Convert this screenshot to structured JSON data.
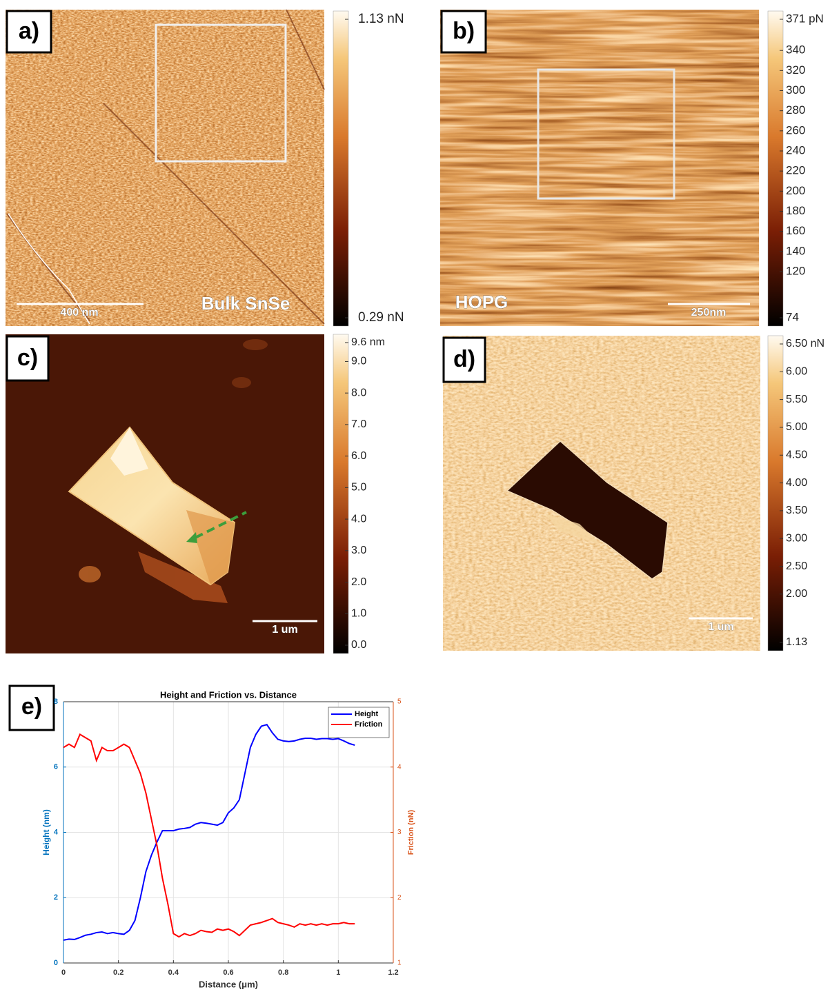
{
  "panels": [
    {
      "label": "a)",
      "sample": "Bulk SnSe",
      "scale_bar": "400 nm",
      "colorbar": {
        "lim": [
          0.29,
          1.13
        ],
        "ticks": [
          {
            "value": 1.13,
            "label": "1.13 nN"
          },
          {
            "value": 0.29,
            "label": "0.29 nN"
          }
        ]
      }
    },
    {
      "label": "b)",
      "sample": "HOPG",
      "scale_bar": "250nm",
      "colorbar": {
        "lim": [
          74,
          371
        ],
        "ticks": [
          {
            "value": 371,
            "label": "371 pN"
          },
          340,
          320,
          300,
          280,
          260,
          240,
          220,
          200,
          180,
          160,
          140,
          120,
          74
        ]
      }
    },
    {
      "label": "c)",
      "scale_bar": "1 um",
      "colorbar": {
        "lim": [
          0,
          9.6
        ],
        "ticks": [
          {
            "value": 9.6,
            "label": "9.6 nm"
          },
          {
            "value": 9,
            "label": "9.0"
          },
          {
            "value": 8,
            "label": "8.0"
          },
          {
            "value": 7,
            "label": "7.0"
          },
          {
            "value": 6,
            "label": "6.0"
          },
          {
            "value": 5,
            "label": "5.0"
          },
          {
            "value": 4,
            "label": "4.0"
          },
          {
            "value": 3,
            "label": "3.0"
          },
          {
            "value": 2,
            "label": "2.0"
          },
          {
            "value": 1,
            "label": "1.0"
          },
          {
            "value": 0,
            "label": "0.0"
          }
        ]
      }
    },
    {
      "label": "d)",
      "scale_bar": "1 um",
      "colorbar": {
        "lim": [
          1.13,
          6.5
        ],
        "ticks": [
          {
            "value": 6.5,
            "label": "6.50 nN"
          },
          {
            "value": 6,
            "label": "6.00"
          },
          {
            "value": 5.5,
            "label": "5.50"
          },
          {
            "value": 5,
            "label": "5.00"
          },
          {
            "value": 4.5,
            "label": "4.50"
          },
          {
            "value": 4,
            "label": "4.00"
          },
          {
            "value": 3.5,
            "label": "3.50"
          },
          {
            "value": 3,
            "label": "3.00"
          },
          {
            "value": 2.5,
            "label": "2.50"
          },
          {
            "value": 2,
            "label": "2.00"
          },
          {
            "value": 1.13,
            "label": "1.13"
          }
        ]
      }
    }
  ],
  "chart_data": {
    "type": "line",
    "panel_label": "e)",
    "title": "Height and Friction vs. Distance",
    "x_label": "Distance (μm)",
    "y_label": "Height (nm)",
    "y2_label": "Friction (nN)",
    "y_color": "#0072bd",
    "y2_color": "#d95319",
    "grid": true,
    "legend": "upper right",
    "xlim": [
      0,
      1.2
    ],
    "xticks": [
      0,
      0.2,
      0.4,
      0.6,
      0.8,
      1,
      1.2
    ],
    "ylim": [
      0,
      8
    ],
    "yticks": [
      0,
      2,
      4,
      6,
      8
    ],
    "y2lim": [
      1,
      5
    ],
    "y2ticks": [
      1,
      2,
      3,
      4,
      5
    ],
    "x": [
      0,
      0.02,
      0.04,
      0.06,
      0.08,
      0.1,
      0.12,
      0.14,
      0.16,
      0.18,
      0.2,
      0.22,
      0.24,
      0.26,
      0.28,
      0.3,
      0.32,
      0.34,
      0.36,
      0.38,
      0.4,
      0.42,
      0.44,
      0.46,
      0.48,
      0.5,
      0.52,
      0.54,
      0.56,
      0.58,
      0.6,
      0.62,
      0.64,
      0.66,
      0.68,
      0.7,
      0.72,
      0.74,
      0.76,
      0.78,
      0.8,
      0.82,
      0.84,
      0.86,
      0.88,
      0.9,
      0.92,
      0.94,
      0.96,
      0.98,
      1,
      1.02,
      1.04,
      1.06
    ],
    "series": [
      {
        "name": "Height",
        "color": "#0000ff",
        "values": [
          0.7,
          0.73,
          0.72,
          0.78,
          0.85,
          0.88,
          0.93,
          0.95,
          0.9,
          0.93,
          0.9,
          0.88,
          1.0,
          1.3,
          2.0,
          2.8,
          3.3,
          3.7,
          4.05,
          4.05,
          4.05,
          4.1,
          4.12,
          4.15,
          4.25,
          4.3,
          4.28,
          4.25,
          4.22,
          4.3,
          4.6,
          4.75,
          5.0,
          5.8,
          6.6,
          7.0,
          7.25,
          7.3,
          7.05,
          6.85,
          6.8,
          6.78,
          6.8,
          6.85,
          6.88,
          6.88,
          6.85,
          6.87,
          6.87,
          6.85,
          6.87,
          6.8,
          6.72,
          6.67
        ]
      },
      {
        "name": "Friction",
        "color": "#ff0000",
        "axis": "y2",
        "values": [
          4.3,
          4.35,
          4.3,
          4.5,
          4.45,
          4.4,
          4.1,
          4.3,
          4.25,
          4.25,
          4.3,
          4.35,
          4.3,
          4.1,
          3.9,
          3.6,
          3.2,
          2.8,
          2.3,
          1.9,
          1.45,
          1.4,
          1.45,
          1.42,
          1.45,
          1.5,
          1.48,
          1.47,
          1.52,
          1.5,
          1.52,
          1.48,
          1.42,
          1.5,
          1.58,
          1.6,
          1.62,
          1.65,
          1.68,
          1.62,
          1.6,
          1.58,
          1.55,
          1.6,
          1.58,
          1.6,
          1.58,
          1.6,
          1.58,
          1.6,
          1.6,
          1.62,
          1.6,
          1.6
        ]
      }
    ]
  }
}
